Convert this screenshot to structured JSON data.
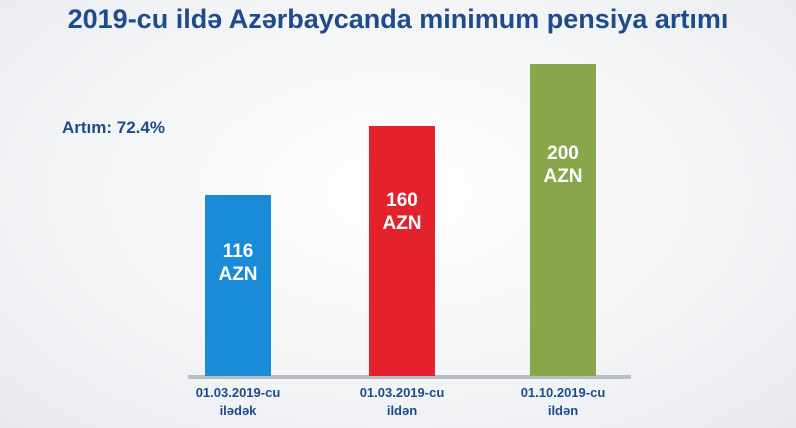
{
  "chart_data": {
    "type": "bar",
    "title": "2019-cu ildə Azərbaycanda minimum pensiya artımı",
    "annotation": "Artım: 72.4%",
    "categories": [
      "01.03.2019-cu ilədək",
      "01.03.2019-cu ildən",
      "01.10.2019-cu ildən"
    ],
    "values": [
      116,
      160,
      200
    ],
    "value_labels": [
      "116 AZN",
      "160 AZN",
      "200 AZN"
    ],
    "colors": [
      "#1a8bd6",
      "#e3222b",
      "#8aa64c"
    ]
  }
}
